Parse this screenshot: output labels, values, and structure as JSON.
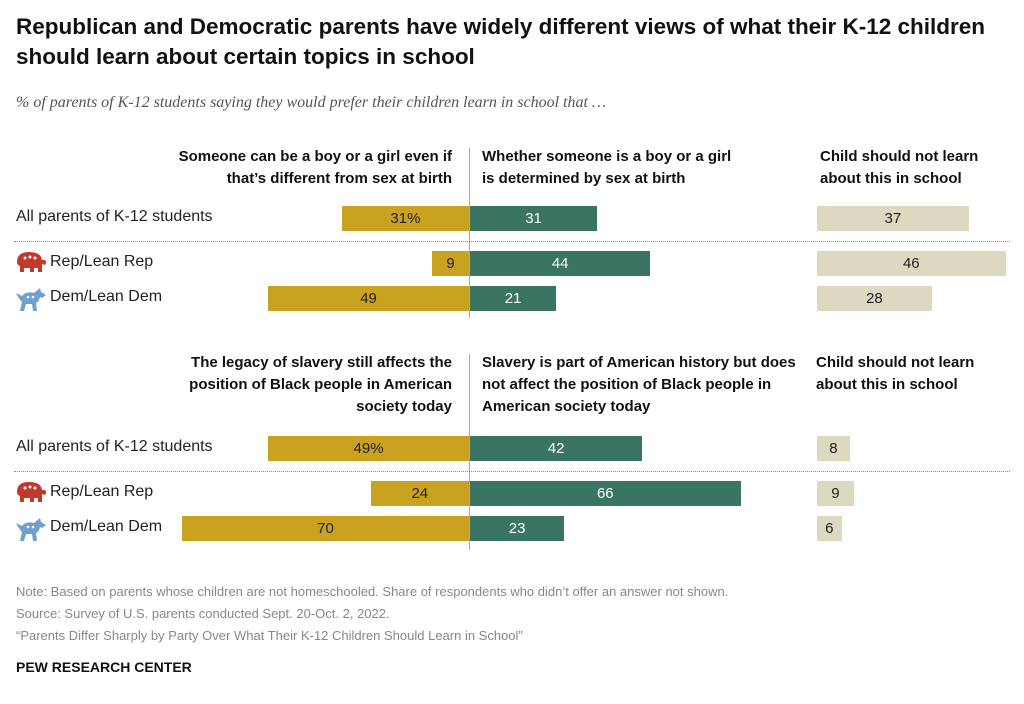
{
  "title": "Republican and Democratic parents have widely different views of what their K-12 children should learn about certain topics in school",
  "subtitle": "% of parents of K-12 students saying they would prefer their children learn in school that …",
  "colors": {
    "left": "#c9a21f",
    "middle": "#3a7563",
    "right": "#dcd9c0",
    "rep_icon": "#c0392b",
    "dem_icon": "#6fa1cc"
  },
  "chart_data": [
    {
      "type": "bar",
      "columns": [
        "Someone can be a boy or a girl even if that’s different from sex at birth",
        "Whether someone is a boy or a girl is determined by sex at birth",
        "Child should not learn about this in school"
      ],
      "categories": [
        "All parents of K-12 students",
        "Rep/Lean Rep",
        "Dem/Lean Dem"
      ],
      "category_icons": [
        "",
        "elephant-icon",
        "donkey-icon"
      ],
      "series": [
        {
          "values": [
            31,
            9,
            49
          ],
          "labels": [
            "31%",
            "9",
            "49"
          ]
        },
        {
          "values": [
            31,
            44,
            21
          ],
          "labels": [
            "31",
            "44",
            "21"
          ]
        },
        {
          "values": [
            37,
            46,
            28
          ],
          "labels": [
            "37",
            "46",
            "28"
          ]
        }
      ]
    },
    {
      "type": "bar",
      "columns": [
        "The legacy of slavery still affects the position of Black people in American society today",
        "Slavery is part of American history but does not affect the position of Black people in American society today",
        "Child should not learn about this in school"
      ],
      "categories": [
        "All parents of K-12 students",
        "Rep/Lean Rep",
        "Dem/Lean Dem"
      ],
      "category_icons": [
        "",
        "elephant-icon",
        "donkey-icon"
      ],
      "series": [
        {
          "values": [
            49,
            24,
            70
          ],
          "labels": [
            "49%",
            "24",
            "70"
          ]
        },
        {
          "values": [
            42,
            66,
            23
          ],
          "labels": [
            "42",
            "66",
            "23"
          ]
        },
        {
          "values": [
            8,
            9,
            6
          ],
          "labels": [
            "8",
            "9",
            "6"
          ]
        }
      ]
    }
  ],
  "notes": [
    "Note: Based on parents whose children are not homeschooled. Share of respondents who didn’t offer an answer not shown.",
    "Source: Survey of U.S. parents conducted Sept. 20-Oct. 2, 2022.",
    "“Parents Differ Sharply by Party Over What Their K-12 Children Should Learn in School”"
  ],
  "brand": "PEW RESEARCH CENTER"
}
